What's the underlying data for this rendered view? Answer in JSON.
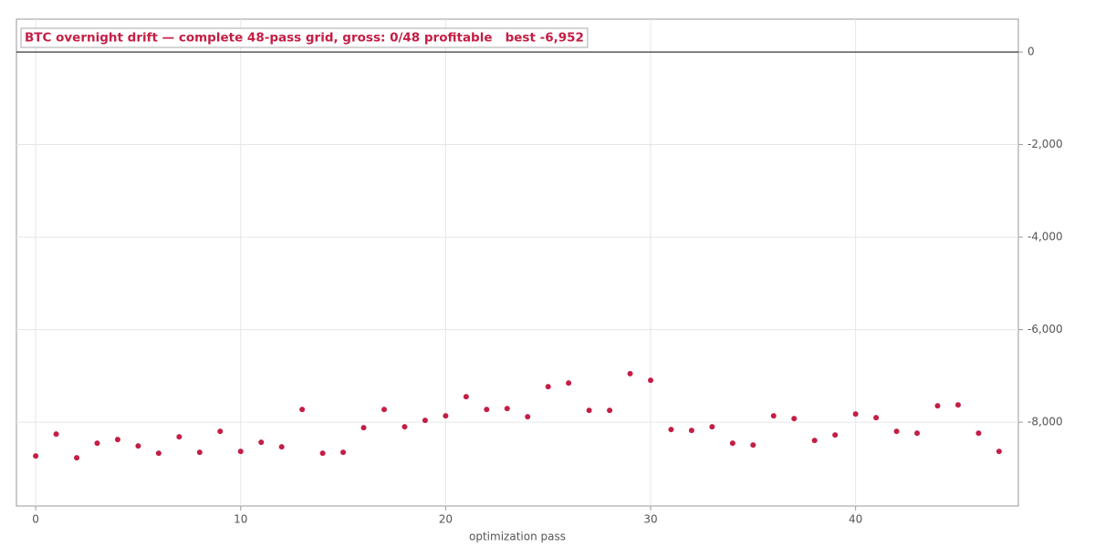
{
  "chart_data": {
    "type": "scatter",
    "title": "BTC overnight drift — complete 48-pass grid, gross: 0/48 profitable   best -6,952",
    "x_label": "optimization pass",
    "x": [
      0,
      1,
      2,
      3,
      4,
      5,
      6,
      7,
      8,
      9,
      10,
      11,
      12,
      13,
      14,
      15,
      16,
      17,
      18,
      19,
      20,
      21,
      22,
      23,
      24,
      25,
      26,
      27,
      28,
      29,
      30,
      31,
      32,
      33,
      34,
      35,
      36,
      37,
      38,
      39,
      40,
      41,
      42,
      43,
      44,
      45,
      46,
      47
    ],
    "values": [
      -8729,
      -8256,
      -8768,
      -8453,
      -8374,
      -8512,
      -8670,
      -8315,
      -8650,
      -8197,
      -8631,
      -8433,
      -8532,
      -7724,
      -8670,
      -8650,
      -8118,
      -7724,
      -8099,
      -7961,
      -7862,
      -7448,
      -7724,
      -7704,
      -7882,
      -7232,
      -7153,
      -7744,
      -7744,
      -6952,
      -7094,
      -8158,
      -8177,
      -8099,
      -8453,
      -8493,
      -7862,
      -7921,
      -8394,
      -8276,
      -7823,
      -7901,
      -8197,
      -8236,
      -7645,
      -7626,
      -8236,
      -8631
    ],
    "color": "#c41e45",
    "xlim": [
      -0.94,
      47.94
    ],
    "xticks": [
      0,
      10,
      20,
      30,
      40
    ],
    "ylim": [
      -9810,
      710
    ],
    "yticks": [
      0,
      {
        "value": -2000,
        "label": "-2,000"
      },
      {
        "value": -4000,
        "label": "-4,000"
      },
      {
        "value": -6000,
        "label": "-6,000"
      },
      {
        "value": -8000,
        "label": "-8,000"
      }
    ],
    "y_axis_side": "right",
    "grid": true,
    "hline": 0
  }
}
